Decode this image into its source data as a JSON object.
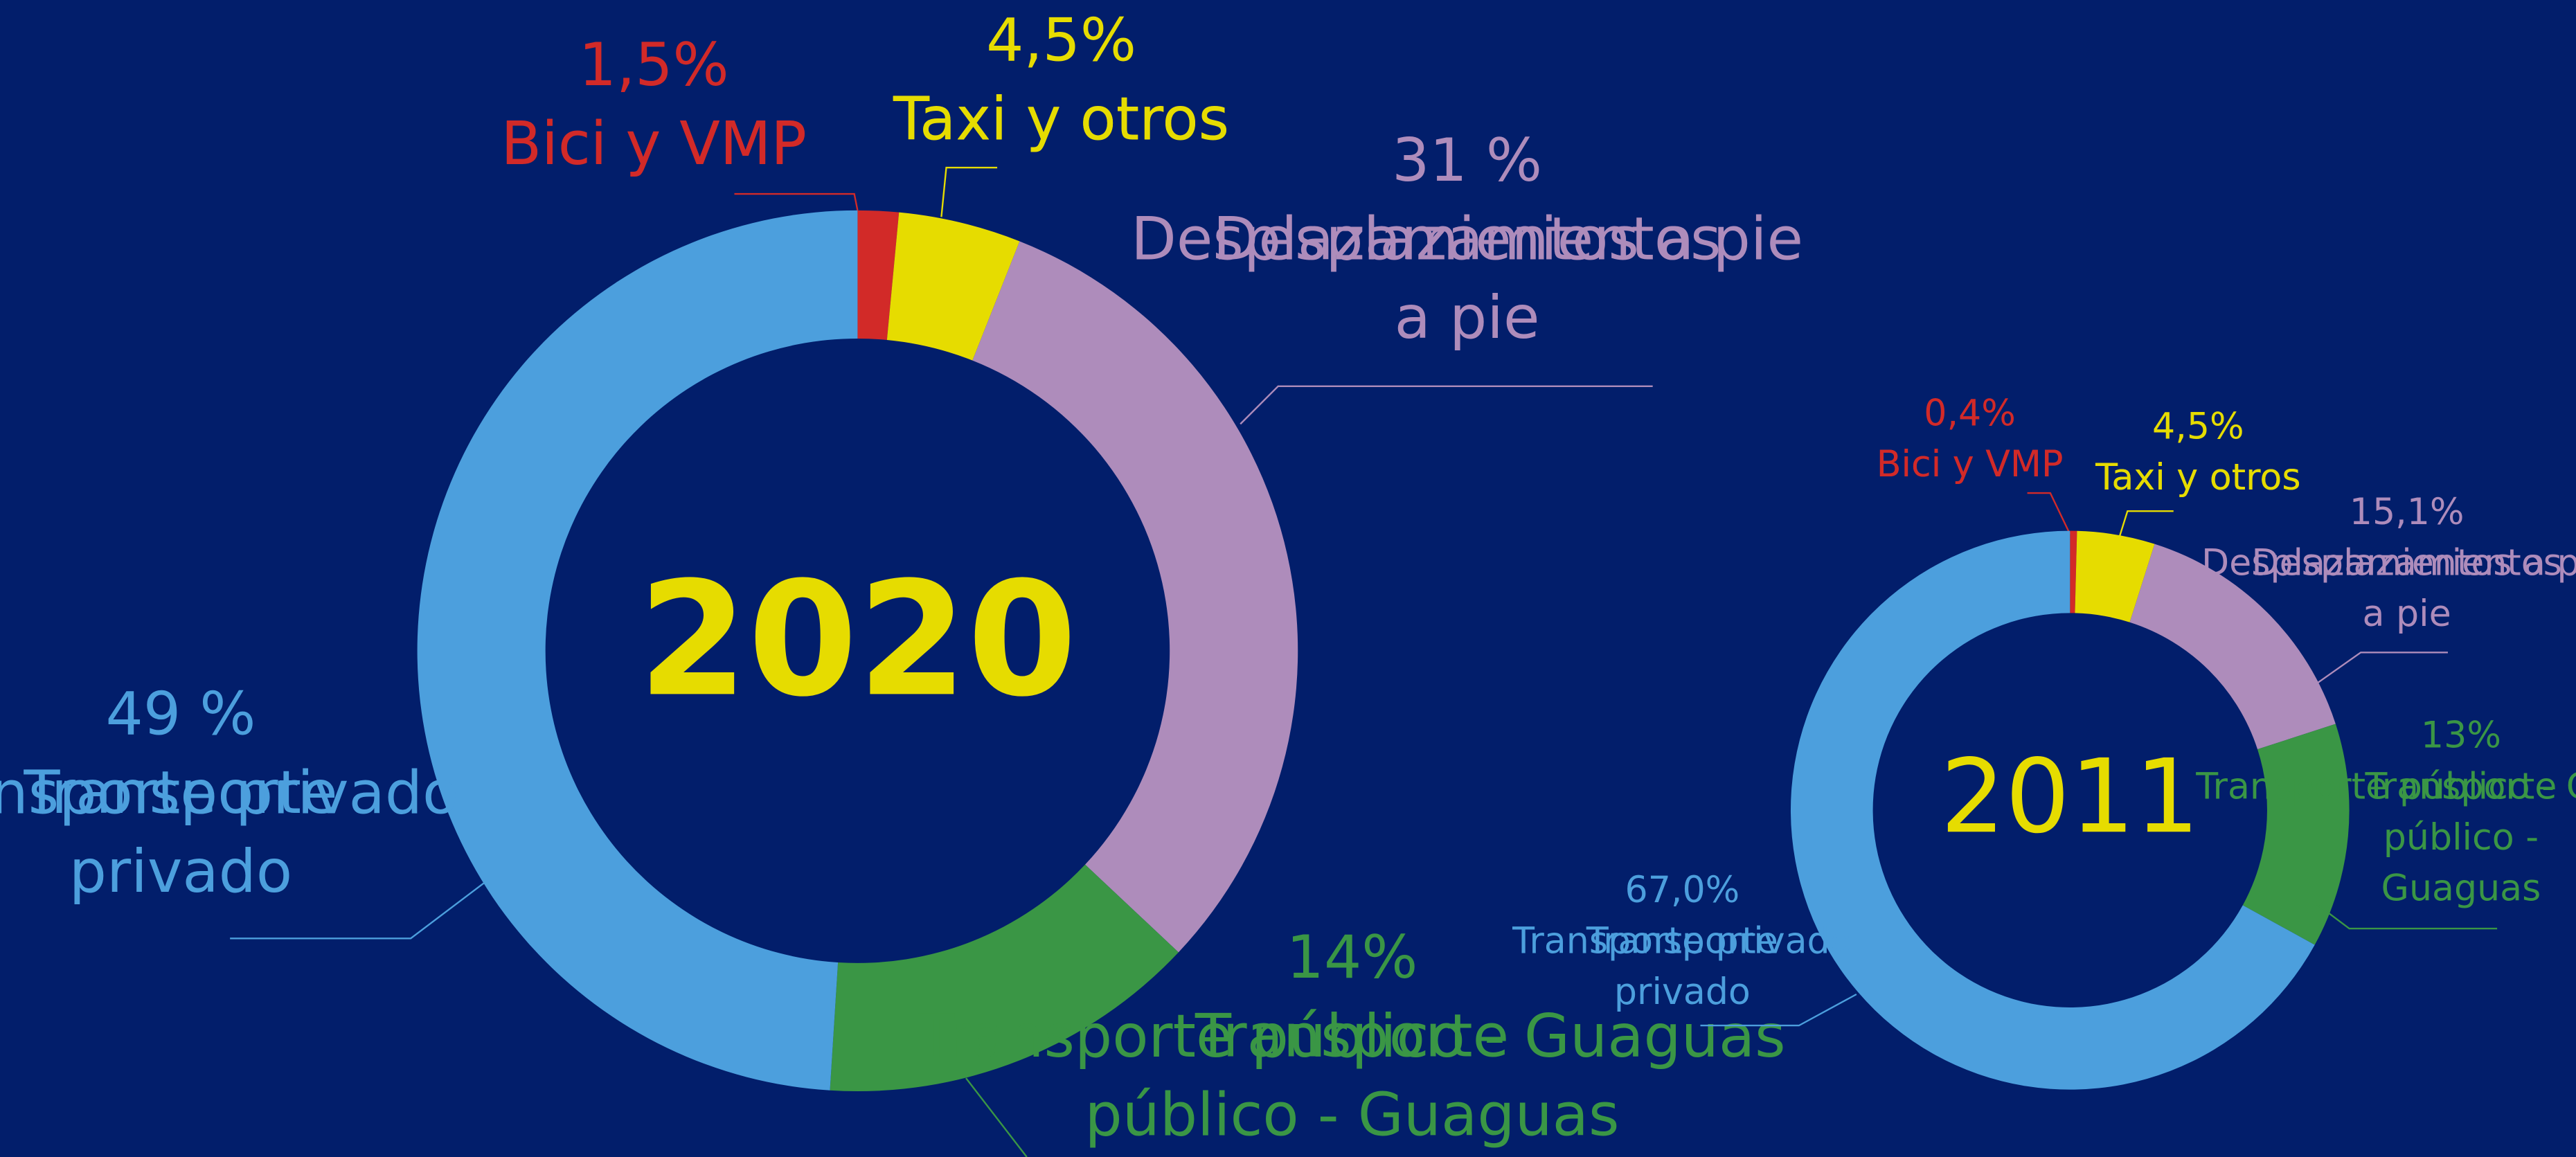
{
  "chart_data": [
    {
      "type": "pie",
      "title": "2020",
      "categories": [
        "Bici y VMP",
        "Taxi y otros",
        "Desplazamientos a pie",
        "Transporte público - Guaguas",
        "Transporte privado"
      ],
      "values": [
        1.5,
        4.5,
        31,
        14,
        49
      ],
      "value_labels": [
        "1,5%",
        "4,5%",
        "31 %",
        "14%",
        "49 %"
      ],
      "colors": [
        "#d22a28",
        "#e6dc00",
        "#ae8cbb",
        "#3a9645",
        "#4c9fdd"
      ]
    },
    {
      "type": "pie",
      "title": "2011",
      "categories": [
        "Bici y VMP",
        "Taxi y otros",
        "Desplazamientos a pie",
        "Transporte público - Guaguas",
        "Transporte privado"
      ],
      "values": [
        0.4,
        4.5,
        15.1,
        13,
        67.0
      ],
      "value_labels": [
        "0,4%",
        "4,5%",
        "15,1%",
        "13%",
        "67,0%"
      ],
      "colors": [
        "#d22a28",
        "#e6dc00",
        "#ae8cbb",
        "#3a9645",
        "#4c9fdd"
      ]
    }
  ]
}
